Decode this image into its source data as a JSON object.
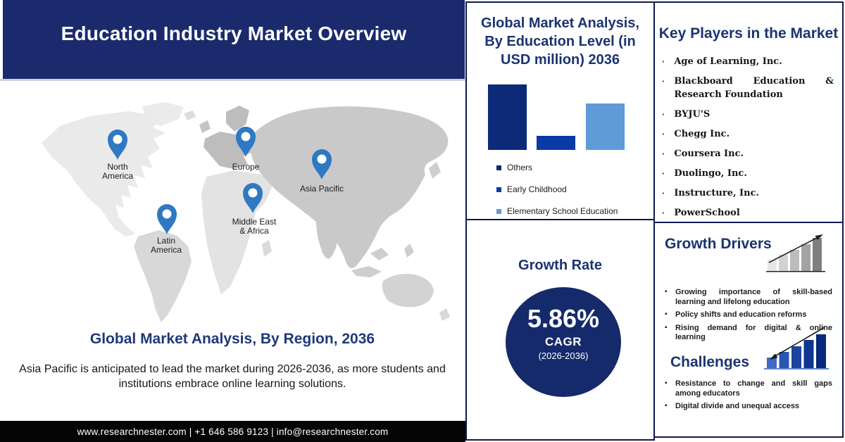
{
  "header": {
    "title": "Education Industry Market Overview"
  },
  "map": {
    "regions": [
      {
        "name": "north-america",
        "line1": "North",
        "line2": "America"
      },
      {
        "name": "europe",
        "line1": "Europe",
        "line2": ""
      },
      {
        "name": "asia-pacific",
        "line1": "Asia Pacific",
        "line2": ""
      },
      {
        "name": "latin-america",
        "line1": "Latin",
        "line2": "America"
      },
      {
        "name": "middle-east-africa",
        "line1": "Middle East",
        "line2": "& Africa"
      }
    ]
  },
  "left": {
    "region_title": "Global Market Analysis, By Region, 2036",
    "description": "Asia Pacific is anticipated to lead the market during 2026-2036, as more students and institutions embrace online learning solutions."
  },
  "footer": {
    "text": "www.researchnester.com | +1 646 586 9123 | info@researchnester.com"
  },
  "chart_data": {
    "type": "bar",
    "title": "Global Market Analysis, By Education Level (in USD million) 2036",
    "categories": [
      "Others",
      "Early Childhood",
      "Elementary School Education"
    ],
    "values": [
      93,
      20,
      66
    ],
    "values_note": "bars carry no axis or data labels; values are relative bar heights in px as drawn",
    "colors": [
      "#0c2a78",
      "#0a3aa6",
      "#5f9bd8"
    ],
    "xlabel": "",
    "ylabel": "",
    "axes": "none",
    "grid": false,
    "legend_position": "below-left"
  },
  "growth_rate": {
    "title": "Growth Rate",
    "value": "5.86%",
    "cagr_label": "CAGR",
    "period": "(2026-2036)"
  },
  "key_players": {
    "title": "Key Players in the Market",
    "items": [
      "Age of Learning, Inc.",
      "Blackboard Education & Research Foundation",
      "BYJU'S",
      "Chegg Inc.",
      "Coursera Inc.",
      "Duolingo, Inc.",
      "Instructure, Inc.",
      "PowerSchool"
    ]
  },
  "drivers": {
    "title": "Growth Drivers",
    "bullets": [
      "Growing importance of skill-based learning and lifelong education",
      "Policy shifts and education reforms",
      "Rising demand for digital & online learning"
    ]
  },
  "challenges": {
    "title": "Challenges",
    "bullets": [
      "Resistance to change and skill gaps among educators",
      "Digital divide and unequal access"
    ]
  },
  "colors": {
    "header_navy": "#1a2a6c",
    "panel_title_navy": "#1b3370",
    "circle_navy": "#152a6b",
    "pin_blue": "#2e79c2",
    "footer_black": "#050505",
    "border_navy": "#10194a"
  }
}
